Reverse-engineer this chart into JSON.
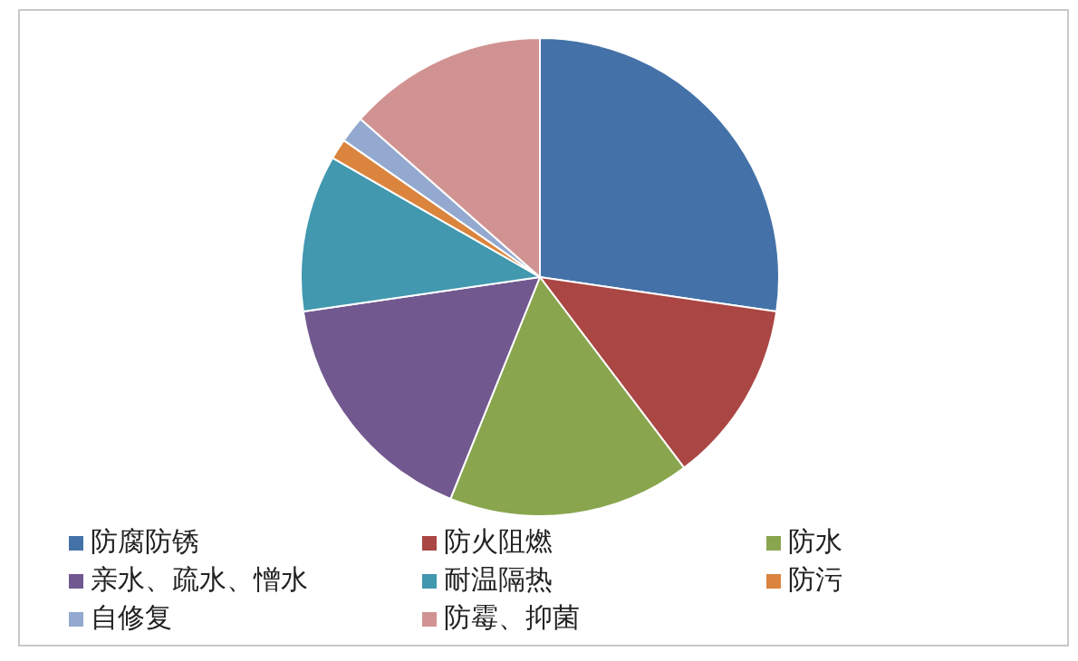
{
  "chart_data": {
    "type": "pie",
    "categories": [
      "防腐防锈",
      "防火阻燃",
      "防水",
      "亲水、疏水、憎水",
      "耐温隔热",
      "防污",
      "自修复",
      "防霉、抑菌"
    ],
    "values": [
      27.3,
      12.4,
      16.4,
      16.6,
      10.6,
      1.4,
      1.8,
      13.5
    ],
    "colors": [
      "#4472a8",
      "#aa4643",
      "#89a54e",
      "#71588f",
      "#4198af",
      "#db843d",
      "#93a9cf",
      "#d19392"
    ],
    "legend": "bottom"
  }
}
